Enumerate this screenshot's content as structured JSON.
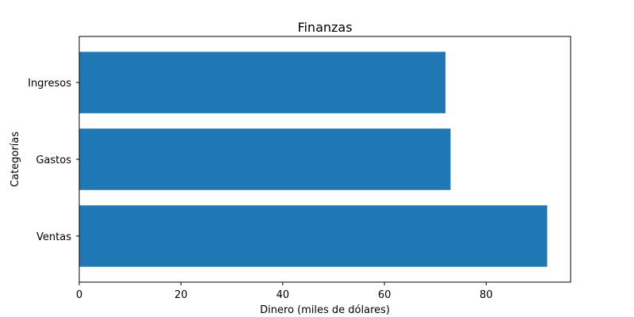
{
  "chart_data": {
    "type": "bar",
    "orientation": "horizontal",
    "title": "Finanzas",
    "xlabel": "Dinero (miles de dólares)",
    "ylabel": "Categorías",
    "categories": [
      "Ventas",
      "Gastos",
      "Ingresos"
    ],
    "values": [
      92,
      73,
      72
    ],
    "xlim": [
      0,
      96.6
    ],
    "xticks": [
      0,
      20,
      40,
      60,
      80
    ],
    "grid": false,
    "bar_color": "#1f77b4"
  }
}
